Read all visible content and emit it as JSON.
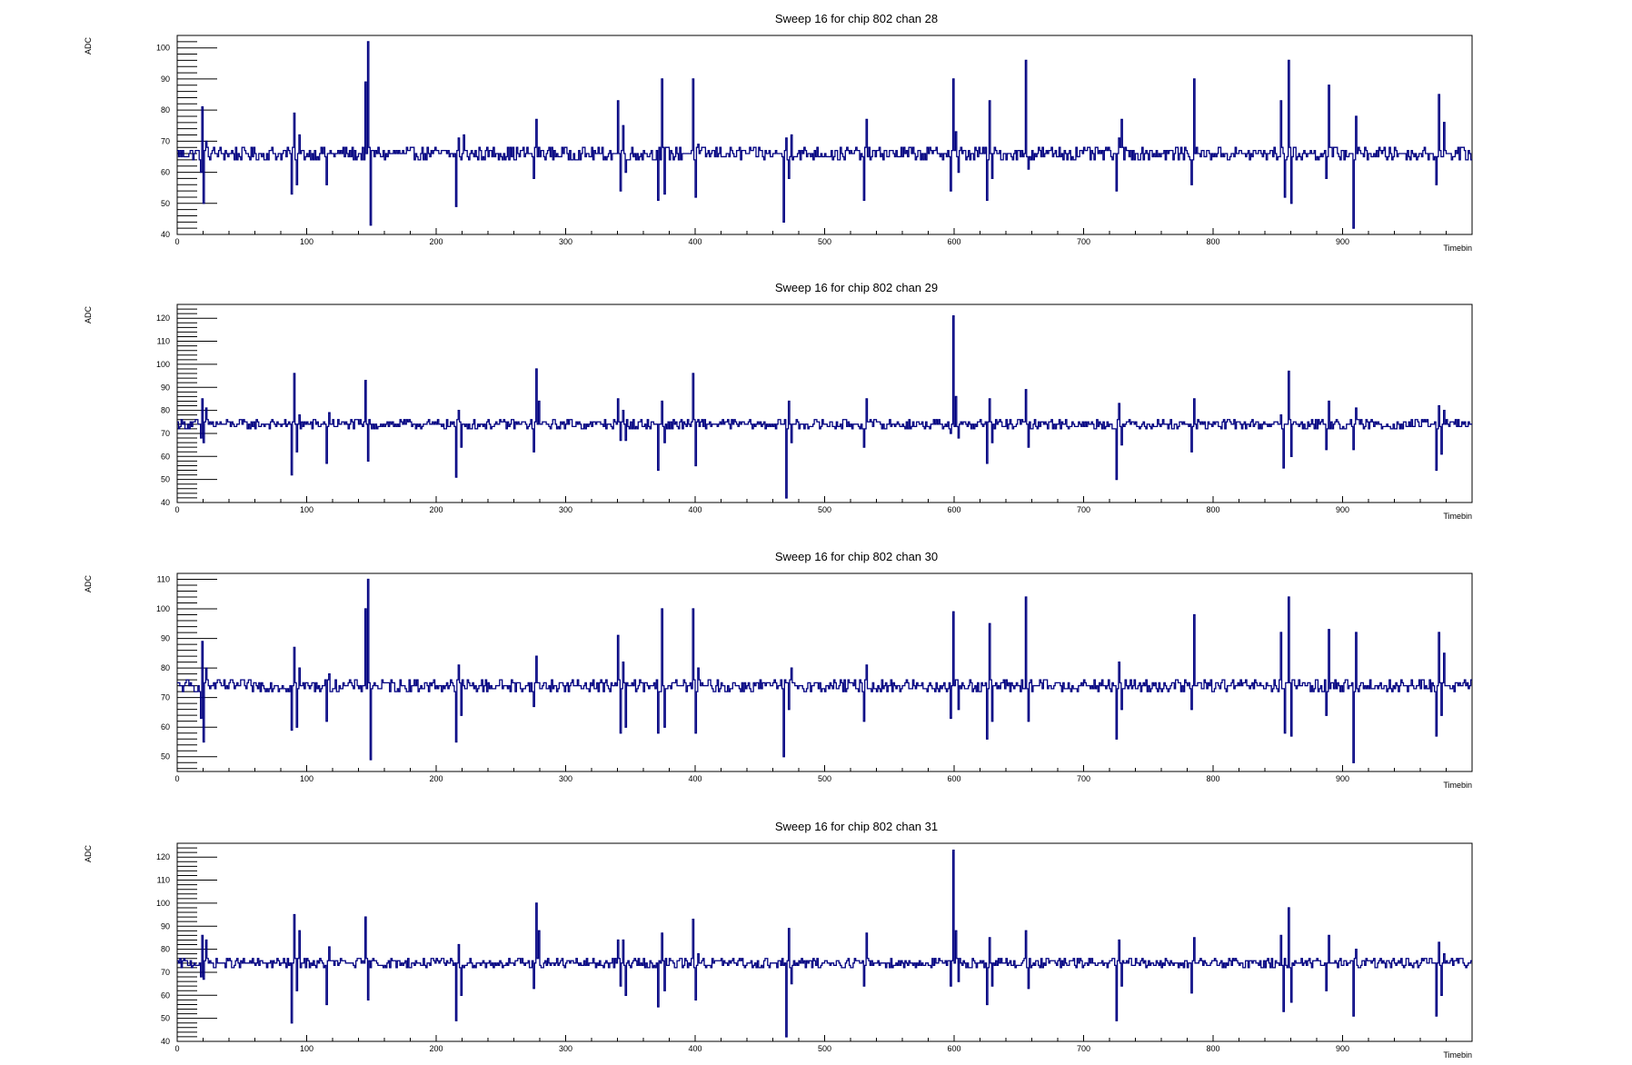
{
  "chart_data": [
    {
      "type": "line",
      "title": "Sweep 16 for chip 802 chan 28",
      "xlabel": "Timebin",
      "ylabel": "ADC",
      "xlim": [
        0,
        1000
      ],
      "ylim": [
        40,
        104
      ],
      "xticks": [
        0,
        100,
        200,
        300,
        400,
        500,
        600,
        700,
        800,
        900
      ],
      "yticks": [
        40,
        50,
        60,
        70,
        80,
        90,
        100
      ],
      "color": "#000080",
      "baseline": 66,
      "spikes": [
        [
          18,
          60
        ],
        [
          19,
          81
        ],
        [
          20,
          50
        ],
        [
          22,
          70
        ],
        [
          88,
          53
        ],
        [
          90,
          79
        ],
        [
          92,
          56
        ],
        [
          94,
          72
        ],
        [
          115,
          56
        ],
        [
          117,
          66
        ],
        [
          145,
          89
        ],
        [
          147,
          102
        ],
        [
          149,
          43
        ],
        [
          215,
          49
        ],
        [
          217,
          71
        ],
        [
          219,
          64
        ],
        [
          221,
          72
        ],
        [
          275,
          58
        ],
        [
          277,
          77
        ],
        [
          340,
          83
        ],
        [
          342,
          54
        ],
        [
          344,
          75
        ],
        [
          346,
          60
        ],
        [
          371,
          51
        ],
        [
          374,
          90
        ],
        [
          376,
          53
        ],
        [
          398,
          90
        ],
        [
          400,
          52
        ],
        [
          402,
          69
        ],
        [
          468,
          44
        ],
        [
          470,
          71
        ],
        [
          472,
          58
        ],
        [
          474,
          72
        ],
        [
          530,
          51
        ],
        [
          532,
          77
        ],
        [
          597,
          54
        ],
        [
          599,
          90
        ],
        [
          601,
          73
        ],
        [
          603,
          60
        ],
        [
          625,
          51
        ],
        [
          627,
          83
        ],
        [
          629,
          58
        ],
        [
          655,
          96
        ],
        [
          657,
          61
        ],
        [
          725,
          54
        ],
        [
          727,
          71
        ],
        [
          729,
          77
        ],
        [
          783,
          56
        ],
        [
          785,
          90
        ],
        [
          852,
          83
        ],
        [
          855,
          52
        ],
        [
          858,
          96
        ],
        [
          860,
          50
        ],
        [
          887,
          58
        ],
        [
          889,
          88
        ],
        [
          908,
          42
        ],
        [
          910,
          78
        ],
        [
          972,
          56
        ],
        [
          974,
          85
        ],
        [
          976,
          65
        ],
        [
          978,
          76
        ]
      ]
    },
    {
      "type": "line",
      "title": "Sweep 16 for chip 802 chan 29",
      "xlabel": "Timebin",
      "ylabel": "ADC",
      "xlim": [
        0,
        1000
      ],
      "ylim": [
        40,
        126
      ],
      "xticks": [
        0,
        100,
        200,
        300,
        400,
        500,
        600,
        700,
        800,
        900
      ],
      "yticks": [
        40,
        50,
        60,
        70,
        80,
        90,
        100,
        110,
        120
      ],
      "color": "#000080",
      "baseline": 74,
      "spikes": [
        [
          18,
          68
        ],
        [
          19,
          85
        ],
        [
          20,
          66
        ],
        [
          22,
          81
        ],
        [
          88,
          52
        ],
        [
          90,
          96
        ],
        [
          92,
          62
        ],
        [
          94,
          78
        ],
        [
          115,
          57
        ],
        [
          117,
          79
        ],
        [
          145,
          93
        ],
        [
          147,
          58
        ],
        [
          215,
          51
        ],
        [
          217,
          80
        ],
        [
          219,
          64
        ],
        [
          275,
          62
        ],
        [
          277,
          98
        ],
        [
          279,
          84
        ],
        [
          340,
          85
        ],
        [
          342,
          67
        ],
        [
          344,
          80
        ],
        [
          346,
          67
        ],
        [
          371,
          54
        ],
        [
          374,
          84
        ],
        [
          376,
          66
        ],
        [
          398,
          96
        ],
        [
          400,
          56
        ],
        [
          402,
          76
        ],
        [
          470,
          42
        ],
        [
          472,
          84
        ],
        [
          474,
          66
        ],
        [
          530,
          64
        ],
        [
          532,
          85
        ],
        [
          597,
          70
        ],
        [
          599,
          121
        ],
        [
          601,
          86
        ],
        [
          603,
          68
        ],
        [
          625,
          57
        ],
        [
          627,
          85
        ],
        [
          629,
          66
        ],
        [
          655,
          89
        ],
        [
          657,
          64
        ],
        [
          725,
          50
        ],
        [
          727,
          83
        ],
        [
          729,
          65
        ],
        [
          783,
          62
        ],
        [
          785,
          85
        ],
        [
          852,
          78
        ],
        [
          854,
          55
        ],
        [
          858,
          97
        ],
        [
          860,
          60
        ],
        [
          887,
          63
        ],
        [
          889,
          84
        ],
        [
          908,
          63
        ],
        [
          910,
          81
        ],
        [
          972,
          54
        ],
        [
          974,
          82
        ],
        [
          976,
          61
        ],
        [
          978,
          80
        ]
      ]
    },
    {
      "type": "line",
      "title": "Sweep 16 for chip 802 chan 30",
      "xlabel": "Timebin",
      "ylabel": "ADC",
      "xlim": [
        0,
        1000
      ],
      "ylim": [
        45,
        112
      ],
      "xticks": [
        0,
        100,
        200,
        300,
        400,
        500,
        600,
        700,
        800,
        900
      ],
      "yticks": [
        50,
        60,
        70,
        80,
        90,
        100,
        110
      ],
      "color": "#000080",
      "baseline": 74,
      "spikes": [
        [
          18,
          63
        ],
        [
          19,
          89
        ],
        [
          20,
          55
        ],
        [
          22,
          80
        ],
        [
          88,
          59
        ],
        [
          90,
          87
        ],
        [
          92,
          60
        ],
        [
          94,
          80
        ],
        [
          115,
          62
        ],
        [
          117,
          78
        ],
        [
          145,
          100
        ],
        [
          147,
          110
        ],
        [
          149,
          49
        ],
        [
          215,
          55
        ],
        [
          217,
          81
        ],
        [
          219,
          64
        ],
        [
          275,
          67
        ],
        [
          277,
          84
        ],
        [
          340,
          91
        ],
        [
          342,
          58
        ],
        [
          344,
          82
        ],
        [
          346,
          60
        ],
        [
          371,
          58
        ],
        [
          374,
          100
        ],
        [
          376,
          60
        ],
        [
          398,
          100
        ],
        [
          400,
          58
        ],
        [
          402,
          80
        ],
        [
          468,
          50
        ],
        [
          470,
          75
        ],
        [
          472,
          66
        ],
        [
          474,
          80
        ],
        [
          530,
          62
        ],
        [
          532,
          81
        ],
        [
          597,
          63
        ],
        [
          599,
          99
        ],
        [
          601,
          76
        ],
        [
          603,
          66
        ],
        [
          625,
          56
        ],
        [
          627,
          95
        ],
        [
          629,
          62
        ],
        [
          655,
          104
        ],
        [
          657,
          62
        ],
        [
          725,
          56
        ],
        [
          727,
          82
        ],
        [
          729,
          66
        ],
        [
          783,
          66
        ],
        [
          785,
          98
        ],
        [
          852,
          92
        ],
        [
          855,
          58
        ],
        [
          858,
          104
        ],
        [
          860,
          57
        ],
        [
          887,
          64
        ],
        [
          889,
          93
        ],
        [
          908,
          48
        ],
        [
          910,
          92
        ],
        [
          972,
          57
        ],
        [
          974,
          92
        ],
        [
          976,
          64
        ],
        [
          978,
          85
        ]
      ]
    },
    {
      "type": "line",
      "title": "Sweep 16 for chip 802 chan 31",
      "xlabel": "Timebin",
      "ylabel": "ADC",
      "xlim": [
        0,
        1000
      ],
      "ylim": [
        40,
        126
      ],
      "xticks": [
        0,
        100,
        200,
        300,
        400,
        500,
        600,
        700,
        800,
        900
      ],
      "yticks": [
        40,
        50,
        60,
        70,
        80,
        90,
        100,
        110,
        120
      ],
      "color": "#000080",
      "baseline": 74,
      "spikes": [
        [
          18,
          68
        ],
        [
          19,
          86
        ],
        [
          20,
          67
        ],
        [
          22,
          84
        ],
        [
          88,
          48
        ],
        [
          90,
          95
        ],
        [
          92,
          62
        ],
        [
          94,
          88
        ],
        [
          115,
          56
        ],
        [
          117,
          81
        ],
        [
          145,
          94
        ],
        [
          147,
          58
        ],
        [
          215,
          49
        ],
        [
          217,
          82
        ],
        [
          219,
          60
        ],
        [
          275,
          63
        ],
        [
          277,
          100
        ],
        [
          279,
          88
        ],
        [
          340,
          84
        ],
        [
          342,
          64
        ],
        [
          344,
          84
        ],
        [
          346,
          60
        ],
        [
          371,
          55
        ],
        [
          374,
          87
        ],
        [
          376,
          62
        ],
        [
          398,
          93
        ],
        [
          400,
          58
        ],
        [
          402,
          78
        ],
        [
          470,
          42
        ],
        [
          472,
          89
        ],
        [
          474,
          65
        ],
        [
          530,
          64
        ],
        [
          532,
          87
        ],
        [
          597,
          64
        ],
        [
          599,
          123
        ],
        [
          601,
          88
        ],
        [
          603,
          66
        ],
        [
          625,
          56
        ],
        [
          627,
          85
        ],
        [
          629,
          64
        ],
        [
          655,
          88
        ],
        [
          657,
          63
        ],
        [
          725,
          49
        ],
        [
          727,
          84
        ],
        [
          729,
          64
        ],
        [
          783,
          61
        ],
        [
          785,
          85
        ],
        [
          852,
          86
        ],
        [
          854,
          53
        ],
        [
          858,
          98
        ],
        [
          860,
          57
        ],
        [
          887,
          62
        ],
        [
          889,
          86
        ],
        [
          908,
          51
        ],
        [
          910,
          80
        ],
        [
          972,
          51
        ],
        [
          974,
          83
        ],
        [
          976,
          60
        ],
        [
          978,
          78
        ]
      ]
    }
  ]
}
